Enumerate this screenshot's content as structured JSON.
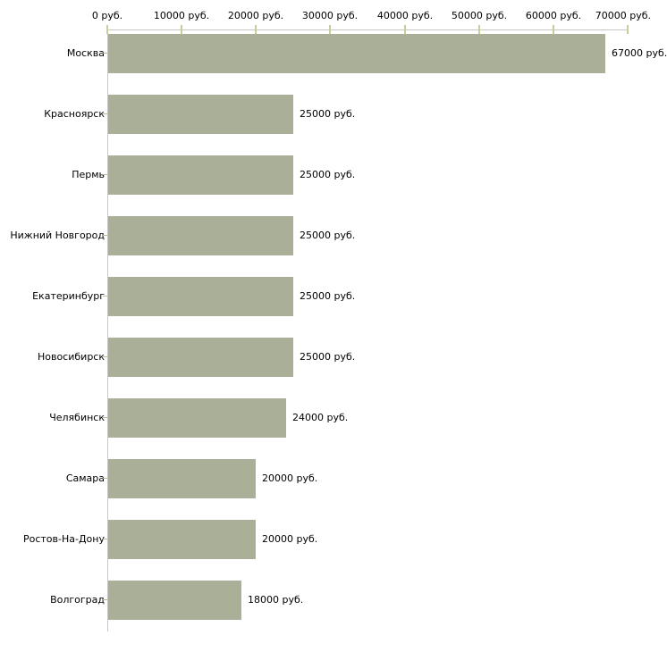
{
  "chart_data": {
    "type": "bar",
    "orientation": "horizontal",
    "title": "",
    "categories": [
      "Москва",
      "Красноярск",
      "Пермь",
      "Нижний Новгород",
      "Екатеринбург",
      "Новосибирск",
      "Челябинск",
      "Самара",
      "Ростов-На-Дону",
      "Волгоград"
    ],
    "values": [
      67000,
      25000,
      25000,
      25000,
      25000,
      25000,
      24000,
      20000,
      20000,
      18000
    ],
    "value_labels": [
      "67000 руб.",
      "25000 руб.",
      "25000 руб.",
      "25000 руб.",
      "25000 руб.",
      "25000 руб.",
      "24000 руб.",
      "20000 руб.",
      "20000 руб.",
      "18000 руб."
    ],
    "unit": "руб.",
    "xlim": [
      0,
      70000
    ],
    "x_ticks": [
      0,
      10000,
      20000,
      30000,
      40000,
      50000,
      60000,
      70000
    ],
    "x_tick_labels": [
      "0 руб.",
      "10000 руб.",
      "20000 руб.",
      "30000 руб.",
      "40000 руб.",
      "50000 руб.",
      "60000 руб.",
      "70000 руб."
    ],
    "axis_position": "top",
    "grid": false,
    "legend": false,
    "colors": {
      "bar": "#aab098",
      "axis_line": "#c6c6c6",
      "tick_mark": "#cccc99",
      "category_tick": "#bbbb99",
      "text": "#000000",
      "background": "#ffffff"
    }
  }
}
